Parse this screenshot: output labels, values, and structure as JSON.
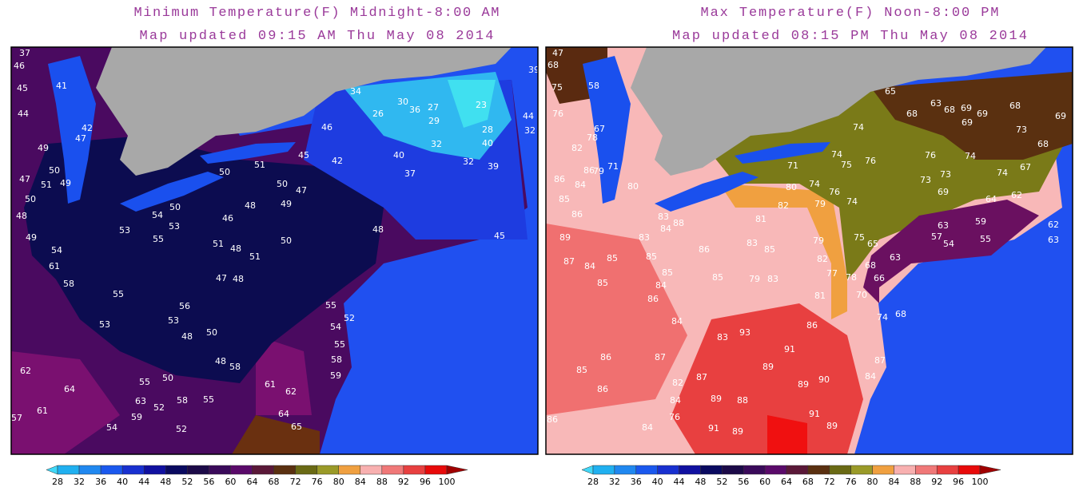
{
  "panels": [
    {
      "title": "Minimum Temperature(F) Midnight-8:00 AM",
      "updated": "Map updated 09:15 AM Thu May 08 2014",
      "stations": [
        37,
        46,
        45,
        41,
        44,
        42,
        47,
        49,
        50,
        47,
        51,
        49,
        50,
        48,
        49,
        54,
        61,
        58,
        53,
        55,
        53,
        54,
        50,
        46,
        51,
        48,
        51,
        47,
        48,
        50,
        46,
        34,
        26,
        30,
        36,
        27,
        29,
        23,
        28,
        40,
        39,
        44,
        32,
        32,
        40,
        32,
        39,
        37,
        45,
        42,
        51,
        50,
        47,
        49,
        48,
        48,
        45,
        55,
        52,
        54,
        55,
        58,
        59,
        53,
        48,
        50,
        62,
        64,
        61,
        57,
        55,
        50,
        63,
        58,
        59,
        52,
        55,
        54,
        52,
        61,
        62,
        64,
        65,
        48,
        58,
        56,
        53,
        55,
        50
      ]
    },
    {
      "title": "Max Temperature(F) Noon-8:00 PM",
      "updated": "Map updated 08:15 PM Thu May 08 2014",
      "stations": [
        47,
        68,
        58,
        75,
        76,
        82,
        78,
        67,
        86,
        85,
        84,
        86,
        86,
        89,
        87,
        84,
        85,
        85,
        85,
        86,
        86,
        71,
        80,
        79,
        83,
        84,
        85,
        84,
        88,
        83,
        85,
        86,
        85,
        83,
        85,
        79,
        83,
        81,
        82,
        79,
        79,
        82,
        77,
        81,
        78,
        65,
        63,
        68,
        68,
        69,
        69,
        69,
        68,
        73,
        69,
        68,
        74,
        74,
        75,
        76,
        76,
        74,
        73,
        73,
        74,
        67,
        71,
        74,
        76,
        74,
        80,
        69,
        64,
        62,
        57,
        54,
        63,
        59,
        55,
        63,
        62,
        75,
        65,
        68,
        63,
        66,
        70,
        68,
        74,
        86,
        93,
        91,
        89,
        87,
        84,
        89,
        90,
        91,
        89,
        89,
        91,
        88,
        89,
        86,
        84,
        83,
        87,
        82,
        87,
        84,
        76,
        84,
        86
      ]
    }
  ],
  "colorbar": {
    "labels": [
      28,
      32,
      36,
      40,
      44,
      48,
      52,
      56,
      60,
      64,
      68,
      72,
      76,
      80,
      84,
      88,
      92,
      96,
      100
    ],
    "colors": [
      "#40d8f8",
      "#20b0f0",
      "#2088f0",
      "#1a58ee",
      "#1830d0",
      "#1010a0",
      "#0a0a60",
      "#1c0a48",
      "#3a0a5a",
      "#5a0a6a",
      "#5a1838",
      "#5a3010",
      "#6a6a14",
      "#9a9a28",
      "#f0a040",
      "#f8b0b0",
      "#f07878",
      "#e84040",
      "#e80a0a",
      "#a00000"
    ]
  }
}
